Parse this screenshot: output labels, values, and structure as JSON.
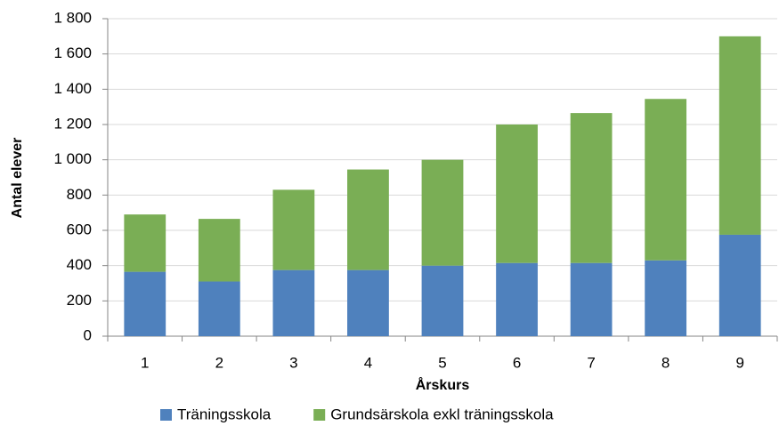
{
  "chart_data": {
    "type": "stacked_bar",
    "x_label": "Årskurs",
    "y_label": "Antal elever",
    "categories": [
      "1",
      "2",
      "3",
      "4",
      "5",
      "6",
      "7",
      "8",
      "9"
    ],
    "series": [
      {
        "name": "Träningsskola",
        "color": "#4f81bd",
        "values": [
          365,
          310,
          375,
          375,
          400,
          415,
          415,
          430,
          575
        ]
      },
      {
        "name": "Grundsärskola exkl träningsskola",
        "color": "#7aae55",
        "values": [
          325,
          355,
          455,
          570,
          600,
          785,
          850,
          915,
          1125
        ]
      }
    ],
    "ylim": [
      0,
      1800
    ],
    "yticks": [
      0,
      200,
      400,
      600,
      800,
      {
        "value": 1000,
        "label": "1 000"
      },
      {
        "value": 1200,
        "label": "1 200"
      },
      {
        "value": 1400,
        "label": "1 400"
      },
      {
        "value": 1600,
        "label": "1 600"
      },
      {
        "value": 1800,
        "label": "1 800"
      }
    ],
    "grid": true,
    "legend": "bottom"
  }
}
